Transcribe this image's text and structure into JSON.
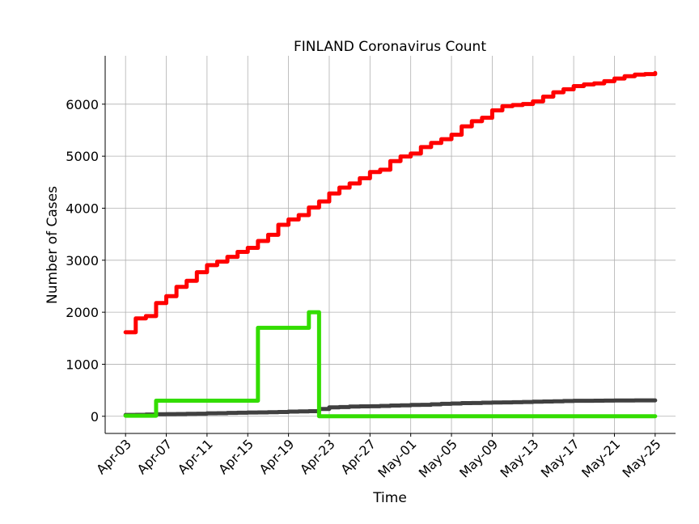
{
  "chart_data": {
    "type": "line",
    "title": "FINLAND Coronavirus Count",
    "xlabel": "Time",
    "ylabel": "Number of Cases",
    "x_start": "Apr-03",
    "x_end": "May-25",
    "xlim": [
      "Apr-01",
      "May-27"
    ],
    "ylim": [
      -330,
      6930
    ],
    "yticks": [
      0,
      1000,
      2000,
      3000,
      4000,
      5000,
      6000
    ],
    "xticks": [
      "Apr-03",
      "Apr-07",
      "Apr-11",
      "Apr-15",
      "Apr-19",
      "Apr-23",
      "Apr-27",
      "May-01",
      "May-05",
      "May-09",
      "May-13",
      "May-17",
      "May-21",
      "May-25"
    ],
    "grid": true,
    "legend": "none",
    "line_style": "steps",
    "series": [
      {
        "color": "#ff0000",
        "values": [
          1615,
          1882,
          1927,
          2176,
          2308,
          2487,
          2605,
          2769,
          2905,
          2974,
          3064,
          3161,
          3237,
          3369,
          3489,
          3681,
          3783,
          3868,
          4014,
          4129,
          4284,
          4395,
          4475,
          4576,
          4695,
          4740,
          4906,
          4995,
          5051,
          5176,
          5254,
          5327,
          5412,
          5573,
          5673,
          5738,
          5880,
          5962,
          5984,
          6003,
          6054,
          6145,
          6228,
          6286,
          6347,
          6380,
          6399,
          6443,
          6493,
          6537,
          6568,
          6579,
          6599
        ]
      },
      {
        "color": "#404040",
        "values": [
          25,
          28,
          34,
          40,
          42,
          44,
          48,
          49,
          56,
          59,
          64,
          69,
          72,
          75,
          78,
          82,
          90,
          94,
          98,
          141,
          172,
          177,
          186,
          190,
          193,
          199,
          206,
          211,
          218,
          220,
          230,
          240,
          246,
          252,
          255,
          260,
          265,
          267,
          271,
          275,
          280,
          284,
          287,
          293,
          297,
          298,
          300,
          301,
          304,
          304,
          305,
          306,
          306
        ]
      },
      {
        "color": "#33dd00",
        "values": [
          10,
          10,
          10,
          300,
          300,
          300,
          300,
          300,
          300,
          300,
          300,
          300,
          300,
          1700,
          1700,
          1700,
          1700,
          1700,
          2000,
          0,
          0,
          0,
          0,
          0,
          0,
          0,
          0,
          0,
          0,
          0,
          0,
          0,
          0,
          0,
          0,
          0,
          0,
          0,
          0,
          0,
          0,
          0,
          0,
          0,
          0,
          0,
          0,
          0,
          0,
          0,
          0,
          0,
          0
        ]
      }
    ]
  }
}
